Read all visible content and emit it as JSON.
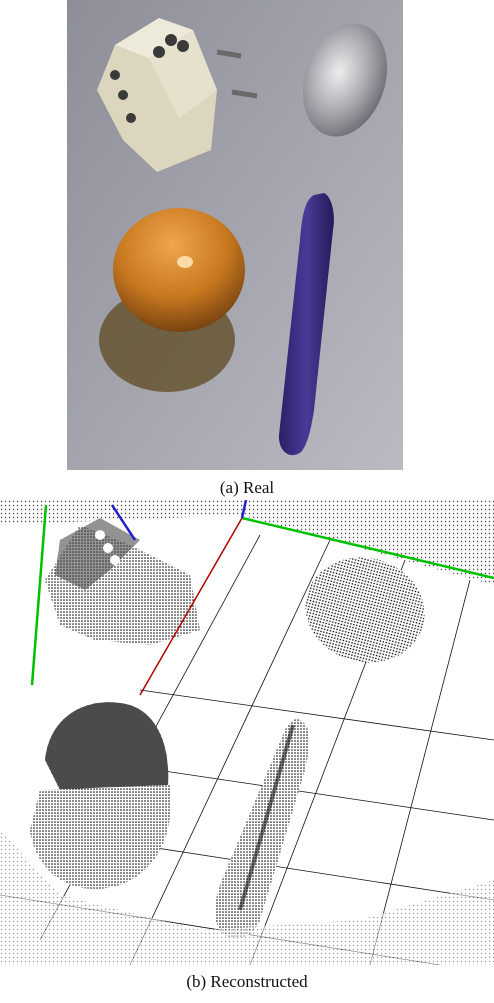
{
  "figure": {
    "panel_a": {
      "caption": "(a) Real"
    },
    "panel_b": {
      "caption": "(b) Reconstructed"
    }
  },
  "colors": {
    "background_wall": "#8c8c94",
    "egg": "#c7781f",
    "spoon_handle": "#3b2a7c",
    "spoon_metal": "#b9b9bf",
    "adapter": "#e6e2cf",
    "axis_red": "#b00000",
    "axis_green": "#00c000",
    "axis_blue": "#2020d0"
  }
}
